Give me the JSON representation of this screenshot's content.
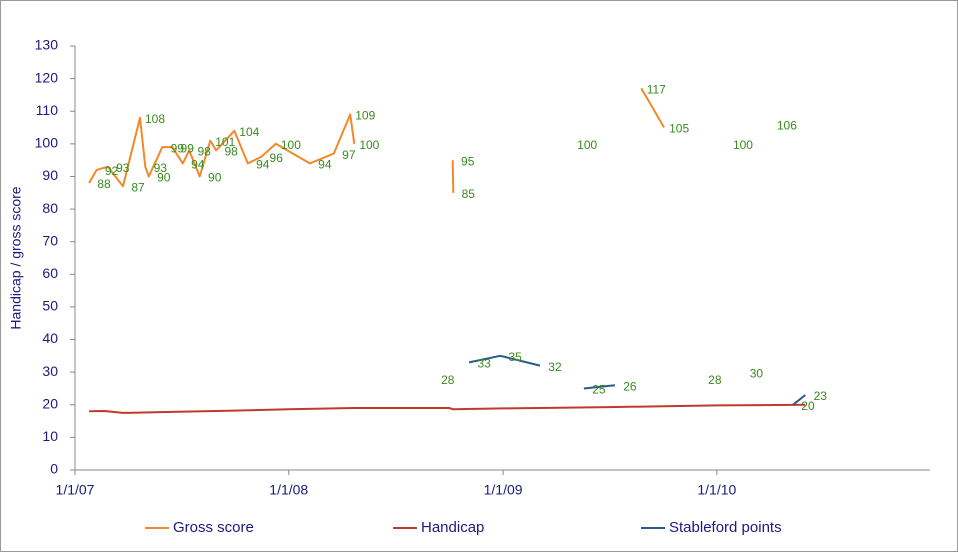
{
  "chart_data": {
    "type": "line",
    "y_label": "Handicap / gross score",
    "ylim": [
      0,
      130
    ],
    "yticks": [
      0,
      10,
      20,
      30,
      40,
      50,
      60,
      70,
      80,
      90,
      100,
      110,
      120,
      130
    ],
    "xlim": [
      "2007-01-01",
      "2010-12-31"
    ],
    "xticks": [
      {
        "value": "2007-01-01",
        "label": "1/1/07"
      },
      {
        "value": "2008-01-01",
        "label": "1/1/08"
      },
      {
        "value": "2009-01-01",
        "label": "1/1/09"
      },
      {
        "value": "2010-01-01",
        "label": "1/1/10"
      }
    ],
    "legend": "bottom",
    "series": [
      {
        "name": "Gross score",
        "color": "#f0892a",
        "data_labels": true,
        "x": [
          "2007-01-25",
          "2007-02-07",
          "2007-02-26",
          "2007-03-24",
          "2007-04-22",
          "2007-05-01",
          "2007-05-07",
          "2007-05-30",
          "2007-06-16",
          "2007-07-04",
          "2007-07-15",
          "2007-08-02",
          "2007-08-20",
          "2007-08-30",
          "2007-09-30",
          "2007-10-23",
          "2007-11-15",
          "2007-12-10",
          "2008-02-06",
          "2008-03-18",
          "2008-04-15",
          "2008-04-22",
          null,
          "2008-10-07",
          "2008-10-08",
          null,
          "2009-04-29",
          null,
          "2009-08-25",
          "2009-10-03",
          null,
          "2010-01-20",
          null,
          "2010-04-05"
        ],
        "values": [
          88,
          92,
          93,
          87,
          108,
          93,
          90,
          99,
          99,
          94,
          98,
          90,
          101,
          98,
          104,
          94,
          96,
          100,
          94,
          97,
          109,
          100,
          null,
          95,
          85,
          null,
          100,
          null,
          117,
          105,
          null,
          100,
          null,
          106
        ]
      },
      {
        "name": "Handicap",
        "color": "#c0392b",
        "data_labels": false,
        "x": [
          "2007-01-25",
          "2007-02-20",
          "2007-03-24",
          "2007-06-16",
          "2007-09-30",
          "2008-01-01",
          "2008-04-22",
          "2008-10-01",
          "2008-10-08",
          "2009-01-01",
          "2009-07-01",
          "2010-01-01",
          "2010-06-01"
        ],
        "values": [
          18,
          18.1,
          17.5,
          17.8,
          18.2,
          18.6,
          19,
          19,
          18.6,
          18.9,
          19.3,
          19.8,
          20
        ]
      },
      {
        "name": "Stableford points",
        "color": "#2a5a8a",
        "data_labels": true,
        "x": [
          "2008-09-03",
          null,
          "2008-11-04",
          "2008-12-27",
          "2009-03-05",
          null,
          "2009-05-19",
          "2009-07-11",
          null,
          "2009-12-03",
          null,
          "2010-02-12",
          null,
          "2010-05-11",
          "2010-06-01"
        ],
        "values": [
          28,
          null,
          33,
          35,
          32,
          null,
          25,
          26,
          null,
          28,
          null,
          30,
          null,
          20,
          23
        ]
      }
    ]
  }
}
